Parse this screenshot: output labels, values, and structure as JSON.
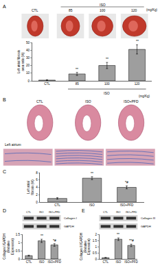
{
  "figure": {
    "panel_labels": [
      "A",
      "B",
      "C",
      "D",
      "E"
    ],
    "photos": {
      "labels": [
        "CTL",
        "85",
        "100",
        "120"
      ],
      "group_label": "ISO",
      "unit": "(mg/Kg)"
    },
    "histology": {
      "columns": [
        "CTL",
        "ISO",
        "ISO+PFD"
      ],
      "row_label": "Left atrium"
    },
    "blots": [
      {
        "bands": [
          "Collagen I",
          "GAPDH"
        ],
        "lanes": [
          "CTL",
          "ISO",
          "ISO+PFD"
        ]
      },
      {
        "bands": [
          "Collagen III",
          "GAPDH"
        ],
        "lanes": [
          "CTL",
          "ISO",
          "ISO+PFD"
        ]
      }
    ]
  },
  "chart_data": [
    {
      "type": "bar",
      "ylabel": "Left atrial fibrosis area ratio (%)",
      "categories": [
        "CTL",
        "85",
        "100",
        "120"
      ],
      "values": [
        1,
        9,
        20,
        41
      ],
      "errors": [
        0.5,
        2,
        4,
        6
      ],
      "significance": [
        null,
        "**",
        "**",
        "**"
      ],
      "group": {
        "label": "ISO",
        "categories": [
          "85",
          "100",
          "120"
        ]
      },
      "x_unit": "(mg/Kg)",
      "color": "#9e9e9e",
      "ylim": [
        0,
        50
      ],
      "yticks": [
        0,
        10,
        20,
        30,
        40,
        50
      ],
      "grid": false
    },
    {
      "type": "bar",
      "ylabel": "Left atrial fibrosis (%)",
      "categories": [
        "CTL",
        "ISO",
        "ISO+PFD"
      ],
      "values": [
        1,
        6.5,
        4
      ],
      "errors": [
        0.2,
        0.4,
        0.4
      ],
      "significance": [
        null,
        "**",
        "*#"
      ],
      "color": "#9e9e9e",
      "ylim": [
        0,
        8
      ],
      "yticks": [
        0,
        2,
        4,
        6,
        8
      ],
      "grid": false
    },
    {
      "type": "bar",
      "ylabel": "Collagen I/GAPDH (Relative Expression)",
      "categories": [
        "CTL",
        "ISO",
        "ISO+PFD"
      ],
      "values": [
        0.2,
        1.1,
        0.85
      ],
      "errors": [
        0.03,
        0.1,
        0.08
      ],
      "significance": [
        null,
        "**",
        "*#"
      ],
      "color": "#9e9e9e",
      "ylim": [
        0,
        1.5
      ],
      "yticks": [
        0,
        0.5,
        1,
        1.5
      ],
      "grid": false
    },
    {
      "type": "bar",
      "ylabel": "Collagen III/GAPDH (Relative Expression)",
      "categories": [
        "CTL",
        "ISO",
        "ISO+PFD"
      ],
      "values": [
        0.1,
        1.6,
        1.1
      ],
      "errors": [
        0.02,
        0.1,
        0.1
      ],
      "significance": [
        null,
        "**",
        "**#"
      ],
      "color": "#9e9e9e",
      "ylim": [
        0,
        2
      ],
      "yticks": [
        0,
        0.5,
        1,
        1.5,
        2
      ],
      "grid": false
    }
  ]
}
